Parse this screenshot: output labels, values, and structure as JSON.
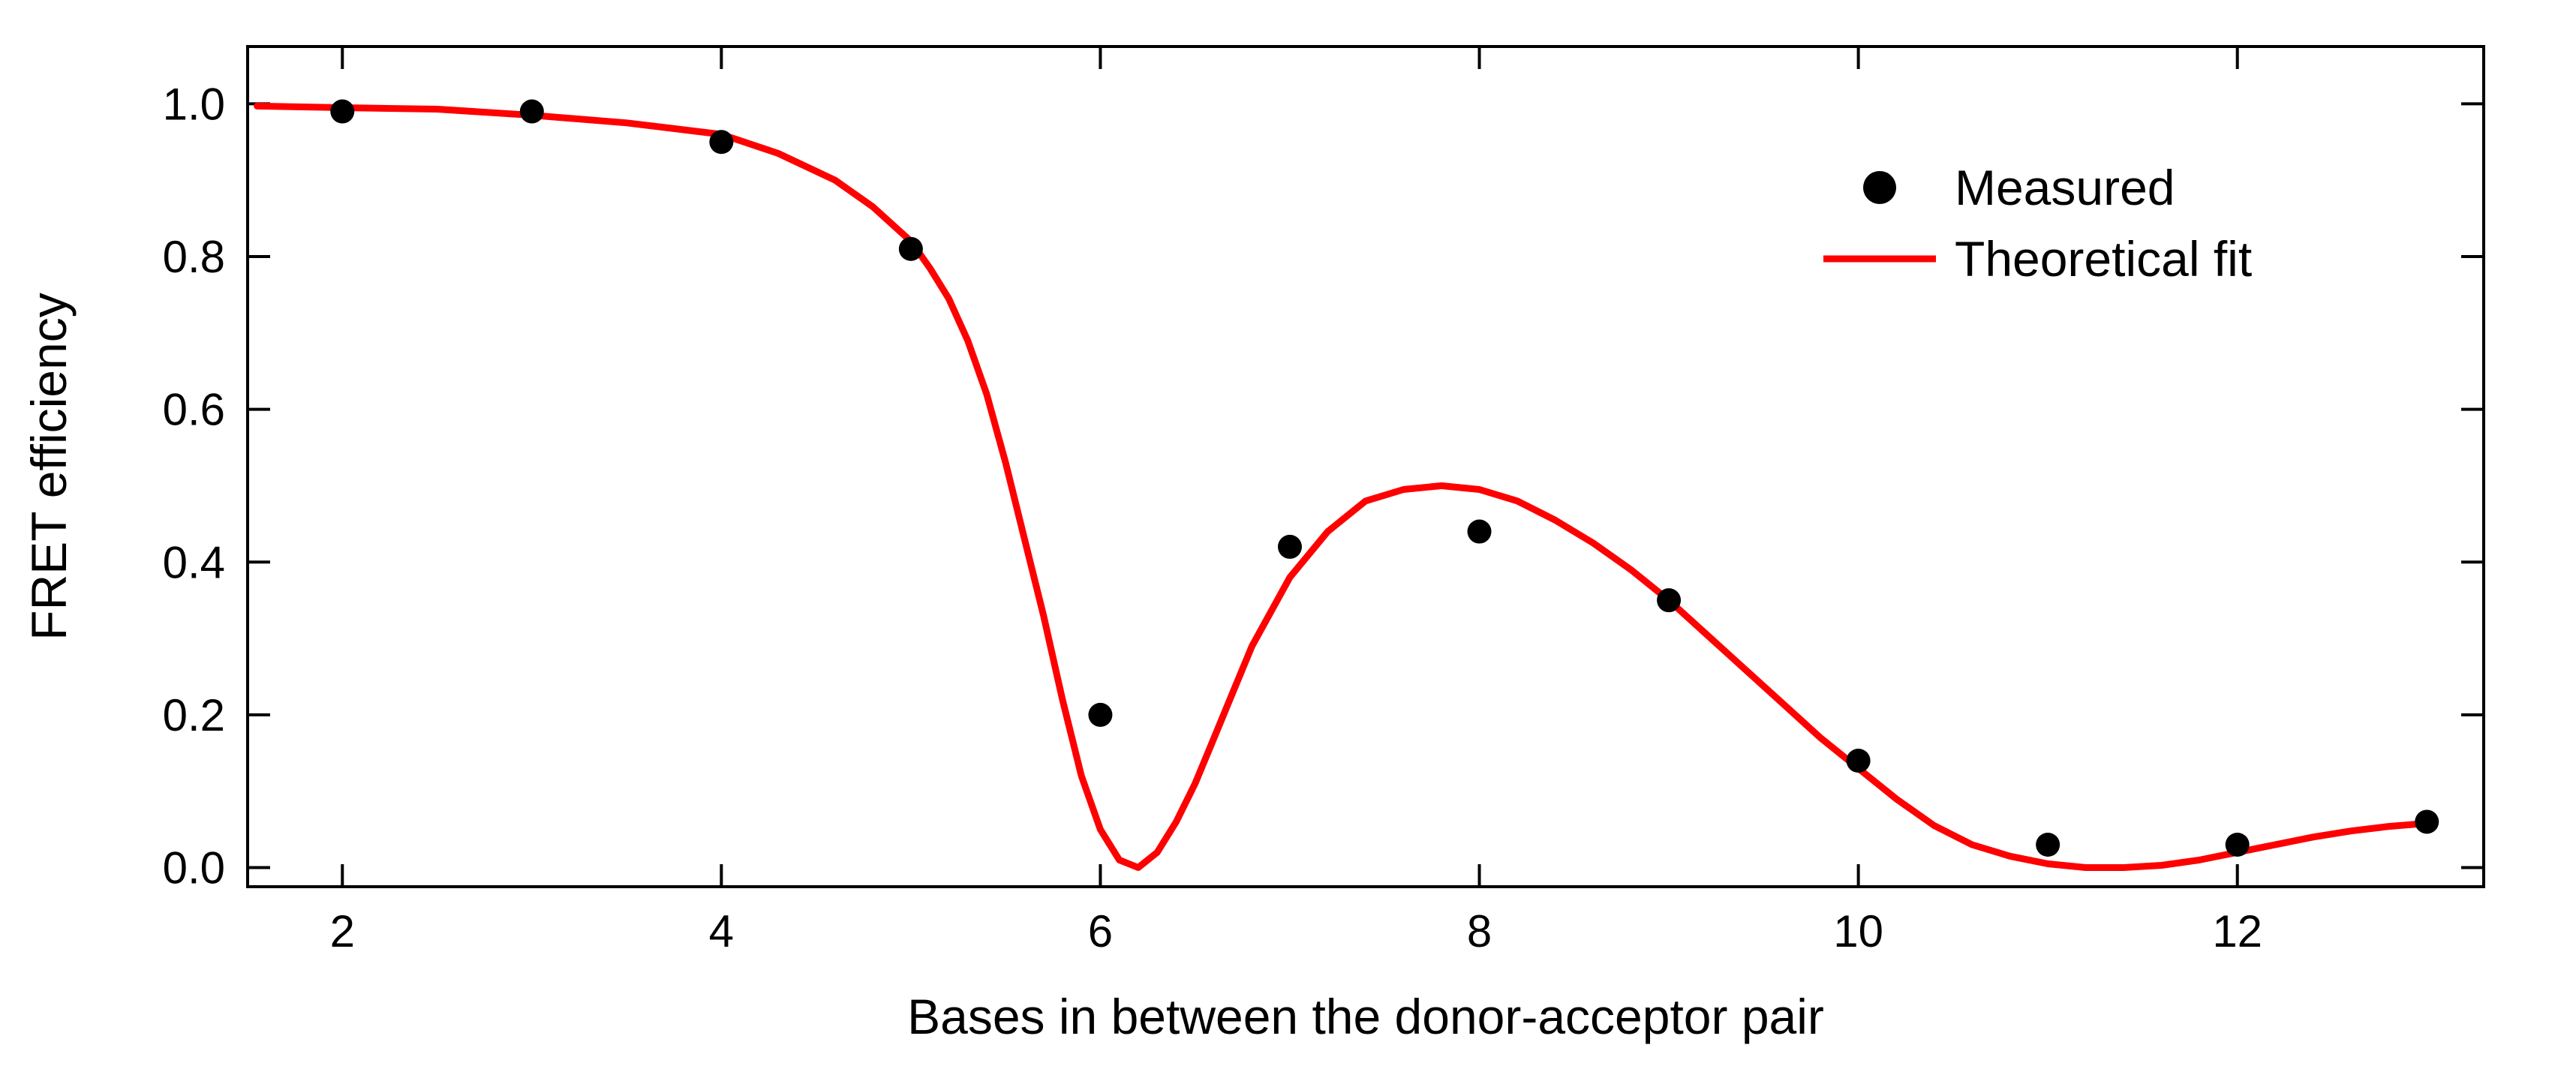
{
  "chart_data": {
    "type": "scatter",
    "xlabel": "Bases in between the donor-acceptor pair",
    "ylabel": "FRET efficiency",
    "xlim": [
      1.5,
      13.3
    ],
    "ylim": [
      -0.025,
      1.075
    ],
    "xticks": [
      2,
      4,
      6,
      8,
      10,
      12
    ],
    "xtick_labels": [
      "2",
      "4",
      "6",
      "8",
      "10",
      "12"
    ],
    "yticks": [
      0.0,
      0.2,
      0.4,
      0.6,
      0.8,
      1.0
    ],
    "ytick_labels": [
      "0.0",
      "0.2",
      "0.4",
      "0.6",
      "0.8",
      "1.0"
    ],
    "grid": false,
    "legend_position": "top-right",
    "series": [
      {
        "name": "Measured",
        "kind": "scatter",
        "color": "#000000",
        "x": [
          2,
          3,
          4,
          5,
          6,
          7,
          8,
          9,
          10,
          11,
          12,
          13
        ],
        "y": [
          0.99,
          0.99,
          0.95,
          0.81,
          0.2,
          0.42,
          0.44,
          0.35,
          0.14,
          0.03,
          0.03,
          0.06
        ]
      },
      {
        "name": "Theoretical fit",
        "kind": "line",
        "color": "#ff0000",
        "x": [
          1.55,
          2.0,
          2.5,
          3.0,
          3.5,
          4.0,
          4.3,
          4.6,
          4.8,
          5.0,
          5.1,
          5.2,
          5.3,
          5.4,
          5.5,
          5.6,
          5.7,
          5.8,
          5.9,
          6.0,
          6.1,
          6.2,
          6.3,
          6.4,
          6.5,
          6.6,
          6.7,
          6.8,
          7.0,
          7.2,
          7.4,
          7.6,
          7.8,
          8.0,
          8.2,
          8.4,
          8.6,
          8.8,
          9.0,
          9.2,
          9.4,
          9.6,
          9.8,
          10.0,
          10.2,
          10.4,
          10.6,
          10.8,
          11.0,
          11.2,
          11.4,
          11.6,
          11.8,
          12.0,
          12.2,
          12.4,
          12.6,
          12.8,
          13.0
        ],
        "y": [
          0.997,
          0.995,
          0.993,
          0.985,
          0.975,
          0.96,
          0.935,
          0.9,
          0.865,
          0.82,
          0.785,
          0.745,
          0.69,
          0.62,
          0.53,
          0.43,
          0.33,
          0.22,
          0.12,
          0.05,
          0.01,
          0.0,
          0.02,
          0.06,
          0.11,
          0.17,
          0.23,
          0.29,
          0.38,
          0.44,
          0.48,
          0.495,
          0.5,
          0.495,
          0.48,
          0.455,
          0.425,
          0.39,
          0.35,
          0.305,
          0.26,
          0.215,
          0.17,
          0.13,
          0.09,
          0.055,
          0.03,
          0.015,
          0.005,
          0.0,
          0.0,
          0.003,
          0.01,
          0.02,
          0.03,
          0.04,
          0.048,
          0.054,
          0.058
        ]
      }
    ]
  }
}
